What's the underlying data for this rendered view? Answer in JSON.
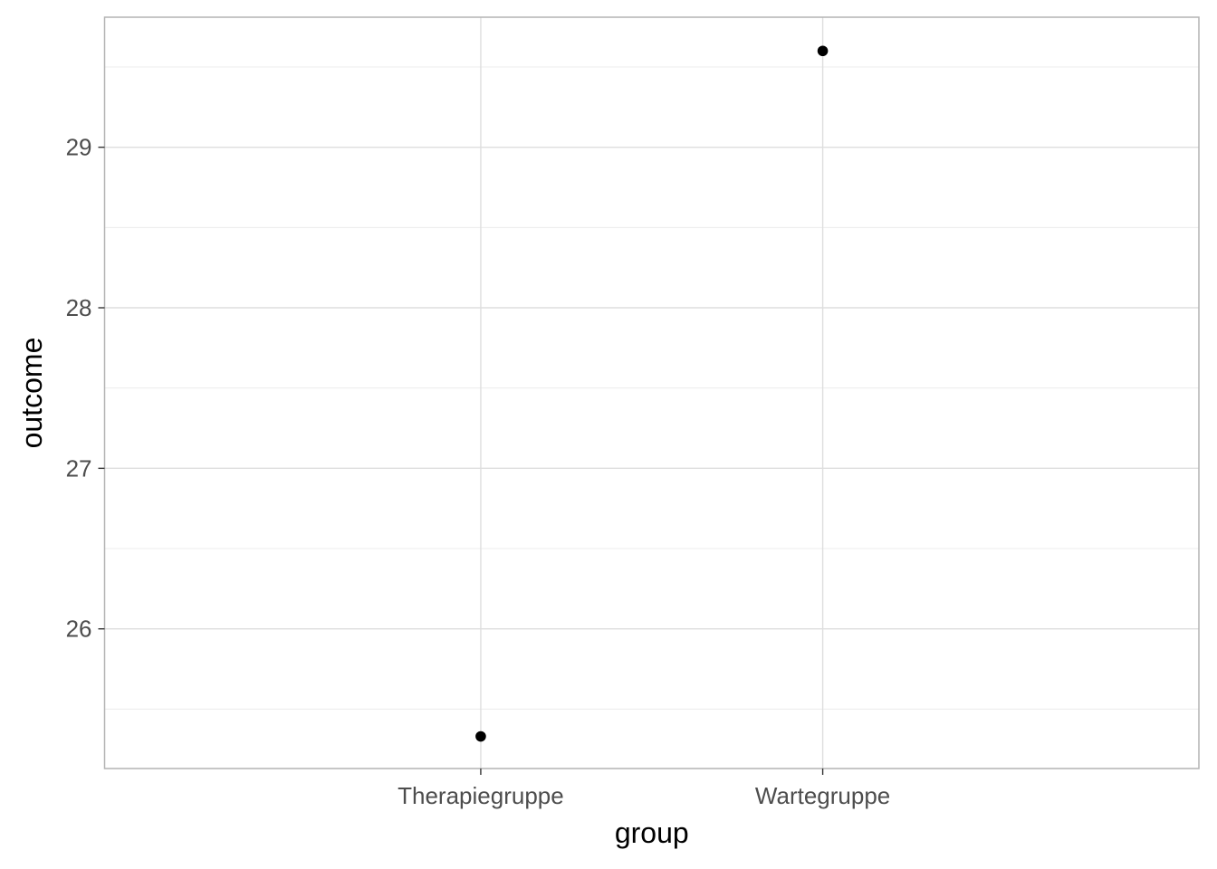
{
  "chart_data": {
    "type": "scatter",
    "title": "",
    "xlabel": "group",
    "ylabel": "outcome",
    "categories": [
      "Therapiegruppe",
      "Wartegruppe"
    ],
    "series": [
      {
        "values": [
          25.33,
          29.6
        ]
      }
    ],
    "ylim": [
      25.13,
      29.81
    ],
    "y_ticks": [
      26,
      27,
      28,
      29
    ],
    "y_tick_labels": [
      "26",
      "27",
      "28",
      "29"
    ],
    "grid": true,
    "legend": "none",
    "colors": {
      "point": "#000000",
      "grid_major": "#dedede",
      "grid_minor": "#ececec",
      "panel_border": "#b3b3b3",
      "tick_label": "#4d4d4d",
      "axis_title": "#000000"
    }
  }
}
